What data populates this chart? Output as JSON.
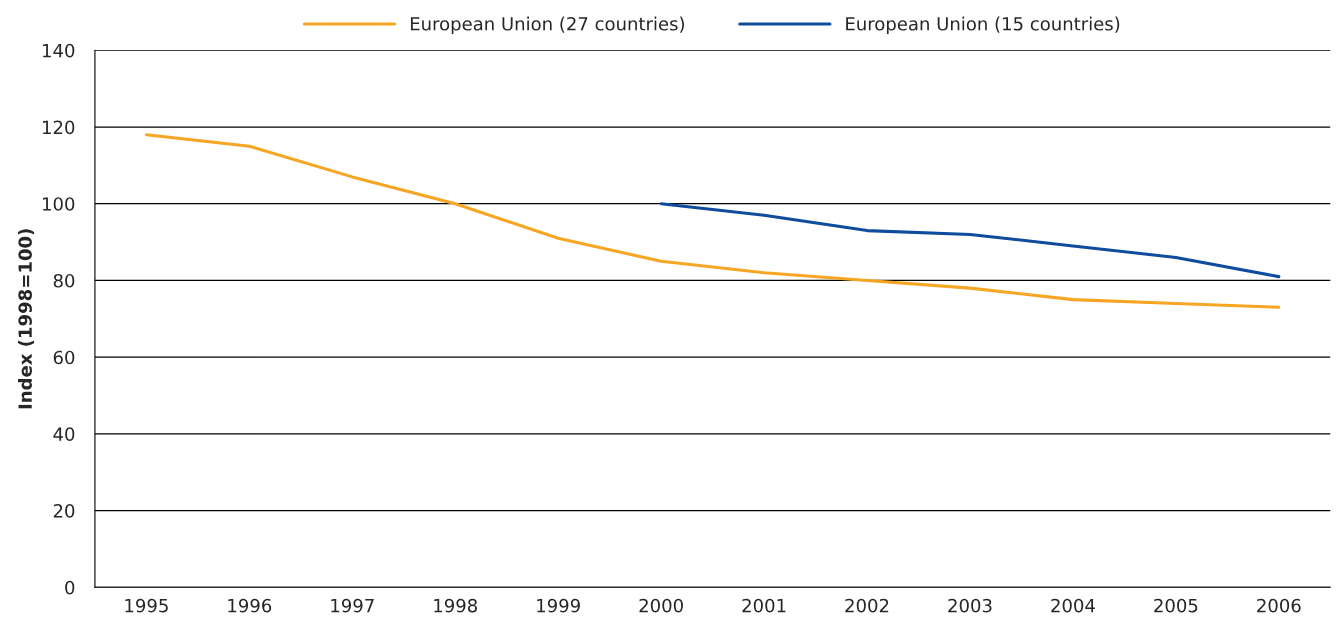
{
  "chart_data": {
    "type": "line",
    "ylabel": "Index (1998=100)",
    "categories": [
      "1995",
      "1996",
      "1997",
      "1998",
      "1999",
      "2000",
      "2001",
      "2002",
      "2003",
      "2004",
      "2005",
      "2006"
    ],
    "series": [
      {
        "name": "European Union (27 countries)",
        "color": "#f6a623",
        "values": [
          118,
          115,
          107,
          100,
          91,
          85,
          82,
          80,
          78,
          75,
          74,
          73
        ]
      },
      {
        "name": "European Union (15 countries)",
        "color": "#0f4c9e",
        "values": [
          null,
          null,
          null,
          null,
          null,
          100,
          97,
          93,
          92,
          89,
          86,
          81
        ]
      }
    ],
    "ylim": [
      0,
      140
    ],
    "yticks": [
      0,
      20,
      40,
      60,
      80,
      100,
      120,
      140
    ],
    "grid": "y",
    "legend": "top",
    "marker": "none",
    "line_style": "solid"
  }
}
